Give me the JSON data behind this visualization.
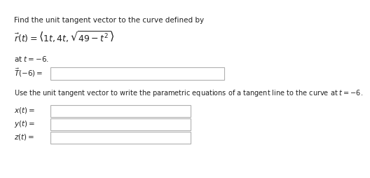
{
  "bg_color": "#ffffff",
  "title_text": "Find the unit tangent vector to the curve defined by",
  "equation": "$\\vec{r}(t) = \\left\\langle 1t, 4t, \\sqrt{49 - t^2}\\right\\rangle$",
  "at_t": "at $t = -6$.",
  "T_label": "$\\vec{T}(-6) = $",
  "use_text": "Use the unit tangent vector to write the parametric equations of a tangent line to the curve at $t = -6$.",
  "x_label": "$x(t) = $",
  "y_label": "$y(t) = $",
  "z_label": "$z(t) = $",
  "font_size": 7.5,
  "eq_font_size": 9.0,
  "box_edge_color": "#b0b0b0",
  "box_face_color": "#ffffff",
  "text_color": "#222222"
}
